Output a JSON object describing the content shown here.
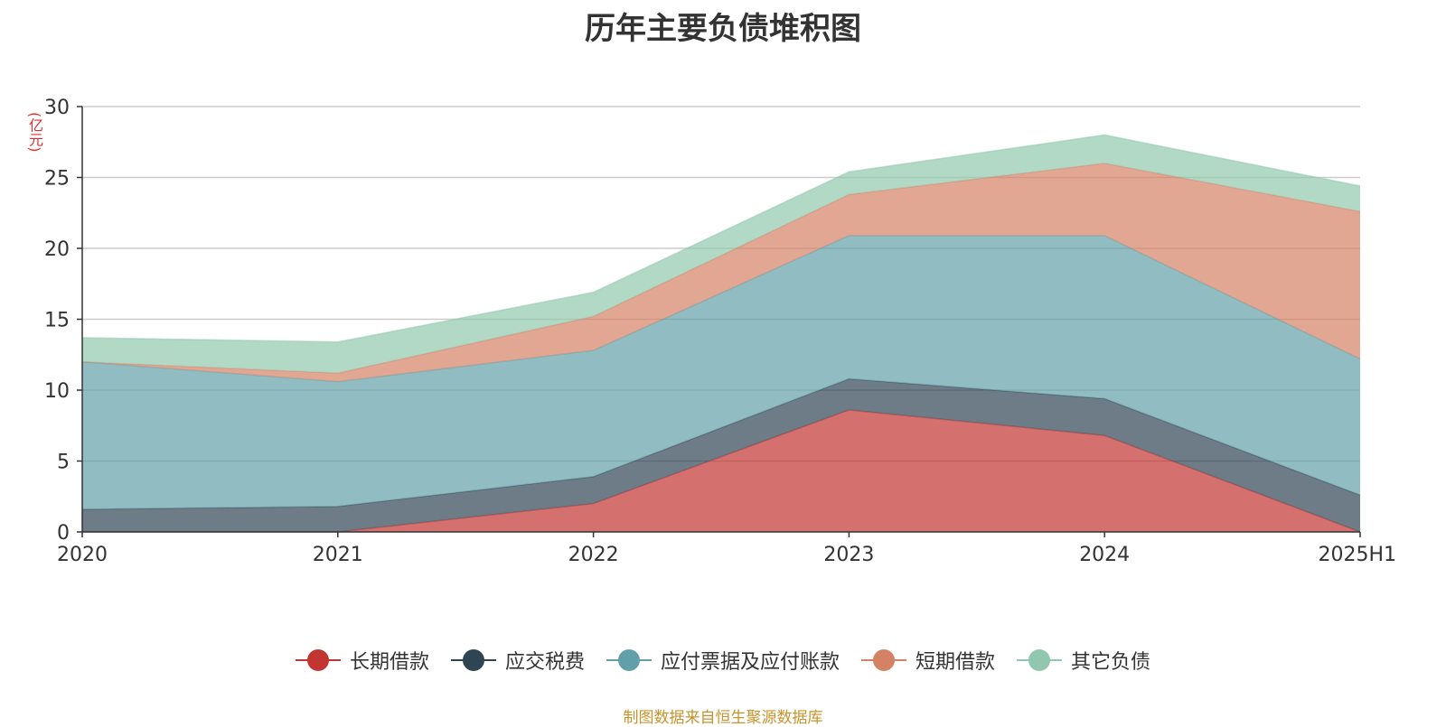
{
  "chart_data": {
    "type": "area",
    "stacked": true,
    "title": "历年主要负债堆积图",
    "y_unit": "(亿元)",
    "categories": [
      "2020",
      "2021",
      "2022",
      "2023",
      "2024",
      "2025H1"
    ],
    "ylim": [
      0,
      30
    ],
    "yticks": [
      0,
      5,
      10,
      15,
      20,
      25,
      30
    ],
    "grid": true,
    "legend_position": "bottom",
    "series": [
      {
        "name": "长期借款",
        "color": "#c23531",
        "values": [
          0,
          0,
          2.0,
          8.6,
          6.8,
          0
        ]
      },
      {
        "name": "应交税费",
        "color": "#2f4554",
        "values": [
          1.6,
          1.8,
          1.9,
          2.2,
          2.6,
          2.6
        ]
      },
      {
        "name": "应付票据及应付账款",
        "color": "#61a0a8",
        "values": [
          10.4,
          8.8,
          8.9,
          10.1,
          11.5,
          9.6
        ]
      },
      {
        "name": "短期借款",
        "color": "#d48265",
        "values": [
          0,
          0.6,
          2.4,
          2.9,
          5.1,
          10.4
        ]
      },
      {
        "name": "其它负债",
        "color": "#91c7ae",
        "values": [
          1.7,
          2.2,
          1.7,
          1.6,
          2.0,
          1.8
        ]
      }
    ]
  },
  "footer": {
    "source_note": "制图数据来自恒生聚源数据库"
  }
}
